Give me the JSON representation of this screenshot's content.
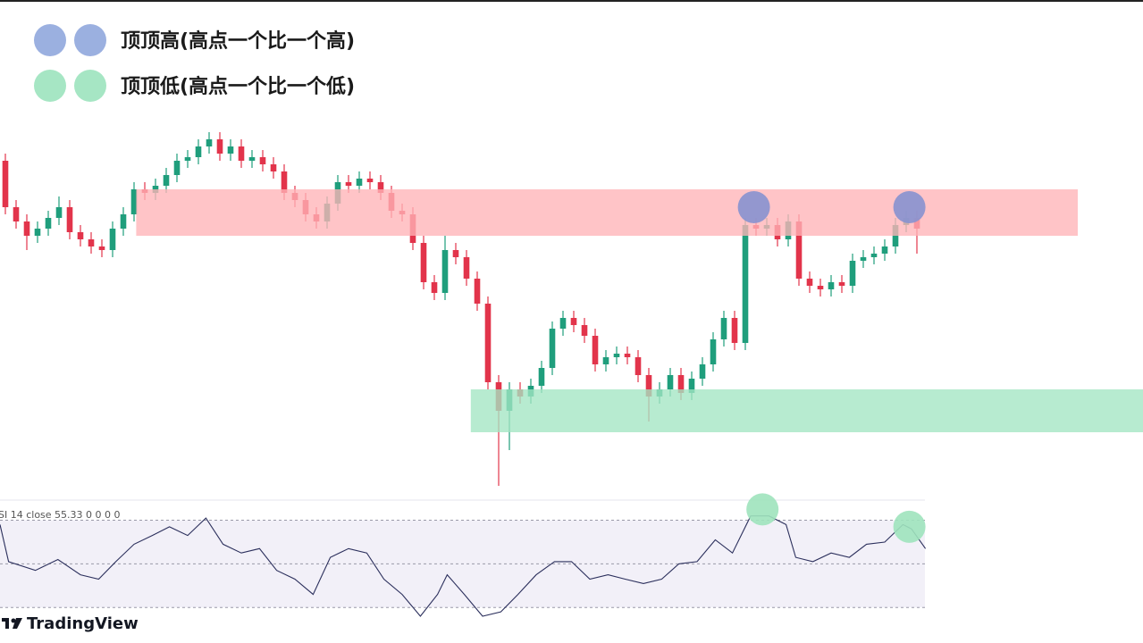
{
  "legend": [
    {
      "text": "顶顶高(高点一个比一个高)",
      "color": "#9bb0e0"
    },
    {
      "text": "顶顶低(高点一个比一个低)",
      "color": "#a6e6c4"
    }
  ],
  "chart_data": [
    {
      "type": "candlestick",
      "xlim": [
        -0.5,
        85.75
      ],
      "ylim": [
        0,
        110
      ],
      "up_color": "#1f9e7c",
      "down_color": "#e2344b",
      "open": [
        95,
        82,
        78,
        74,
        76,
        79,
        82,
        75,
        73,
        71,
        70,
        76,
        80,
        87,
        86,
        88,
        91,
        95,
        96,
        99,
        101,
        97,
        99,
        95,
        96,
        94,
        92,
        86,
        84,
        80,
        78,
        83,
        89,
        88,
        90,
        89,
        86,
        81,
        80,
        72,
        61,
        58,
        70,
        68,
        62,
        55,
        33,
        25,
        31,
        29,
        32,
        37,
        48,
        51,
        49,
        46,
        38,
        40,
        41,
        40,
        35,
        29,
        31,
        35,
        30,
        34,
        38,
        45,
        51,
        44,
        77,
        76,
        77,
        73,
        78,
        62,
        60,
        59,
        61,
        60,
        67,
        68,
        69,
        71,
        77,
        79
      ],
      "high": [
        97,
        84,
        80,
        78,
        81,
        85,
        84,
        77,
        75,
        73,
        78,
        82,
        89,
        89,
        90,
        93,
        97,
        98,
        101,
        103,
        103,
        101,
        101,
        98,
        98,
        96,
        94,
        88,
        86,
        82,
        85,
        91,
        91,
        92,
        92,
        91,
        88,
        83,
        82,
        74,
        63,
        74,
        72,
        70,
        64,
        57,
        35,
        33,
        33,
        34,
        39,
        50,
        53,
        53,
        51,
        48,
        42,
        43,
        43,
        42,
        37,
        33,
        37,
        37,
        36,
        40,
        47,
        53,
        53,
        79,
        79,
        79,
        79,
        80,
        80,
        64,
        62,
        63,
        63,
        69,
        70,
        71,
        73,
        79,
        81,
        81
      ],
      "low": [
        80,
        76,
        70,
        72,
        74,
        77,
        73,
        71,
        69,
        68,
        68,
        74,
        78,
        84,
        84,
        86,
        89,
        93,
        94,
        97,
        95,
        95,
        93,
        93,
        92,
        90,
        84,
        82,
        78,
        76,
        76,
        81,
        86,
        86,
        87,
        84,
        79,
        78,
        70,
        59,
        56,
        56,
        66,
        60,
        53,
        31,
        4,
        14,
        27,
        27,
        30,
        35,
        46,
        47,
        44,
        36,
        36,
        38,
        38,
        33,
        22,
        27,
        29,
        28,
        28,
        32,
        36,
        43,
        42,
        42,
        74,
        74,
        71,
        71,
        60,
        58,
        57,
        57,
        58,
        58,
        65,
        66,
        67,
        69,
        75,
        69
      ],
      "close": [
        82,
        78,
        74,
        76,
        79,
        82,
        75,
        73,
        71,
        70,
        76,
        80,
        87,
        86,
        88,
        91,
        95,
        96,
        99,
        101,
        97,
        99,
        95,
        96,
        94,
        92,
        86,
        84,
        80,
        78,
        83,
        89,
        88,
        90,
        89,
        86,
        81,
        80,
        72,
        61,
        58,
        70,
        68,
        62,
        55,
        33,
        25,
        31,
        29,
        32,
        37,
        48,
        51,
        49,
        46,
        38,
        40,
        41,
        40,
        35,
        29,
        31,
        35,
        30,
        34,
        38,
        45,
        51,
        44,
        77,
        76,
        77,
        73,
        78,
        62,
        60,
        59,
        61,
        60,
        67,
        68,
        69,
        71,
        77,
        79,
        76
      ],
      "zones": [
        {
          "range": [
            74,
            87
          ],
          "x": [
            12.2,
            100
          ],
          "color": "#ffb3b7"
        },
        {
          "range": [
            19,
            31
          ],
          "x": [
            43.4,
            106.1
          ],
          "color": "#a3e5c3"
        }
      ],
      "markers": [
        {
          "x": 69.8,
          "y": 82,
          "color": "#8792cf"
        },
        {
          "x": 84.3,
          "y": 82,
          "color": "#8792cf"
        }
      ]
    },
    {
      "type": "line",
      "label": "SI 14 close 55.33 0 0 0 0",
      "xlim": [
        -0.5,
        85.75
      ],
      "ylim": [
        26,
        78
      ],
      "color": "#2b2f5c",
      "levels": [
        30,
        50,
        70
      ],
      "band_color": "#f2f0f8",
      "x": [
        -0.5,
        0.3,
        2.8,
        4.9,
        7,
        8.7,
        10.3,
        12,
        13.7,
        15.3,
        17,
        18.7,
        20.3,
        22,
        23.7,
        25.3,
        27,
        28.7,
        30.3,
        32,
        33.7,
        35.3,
        37,
        38.7,
        40.3,
        41.2,
        42.8,
        44.5,
        46.2,
        47.8,
        49.5,
        51.2,
        52.8,
        54.5,
        56.2,
        57.8,
        59.5,
        61.2,
        62.8,
        64.5,
        66.2,
        67.8,
        69.5,
        71.2,
        72.8,
        73.7,
        75.3,
        77,
        78.7,
        80.3,
        82,
        83.7,
        84.5,
        85.8
      ],
      "values": [
        68,
        51,
        47,
        52,
        45,
        43,
        51,
        59,
        63,
        67,
        63,
        71,
        59,
        55,
        57,
        47,
        43,
        36,
        53,
        57,
        55,
        43,
        36,
        26,
        36,
        45,
        36,
        26,
        28,
        36,
        45,
        51,
        51,
        43,
        45,
        43,
        41,
        43,
        50,
        51,
        61,
        55,
        72,
        72,
        68,
        53,
        51,
        55,
        53,
        59,
        60,
        68,
        66,
        57
      ],
      "markers": [
        {
          "x": 70.6,
          "y": 75,
          "color": "#9fe3bd"
        },
        {
          "x": 84.3,
          "y": 67,
          "color": "#9fe3bd"
        }
      ]
    }
  ],
  "brand": "TradingView"
}
